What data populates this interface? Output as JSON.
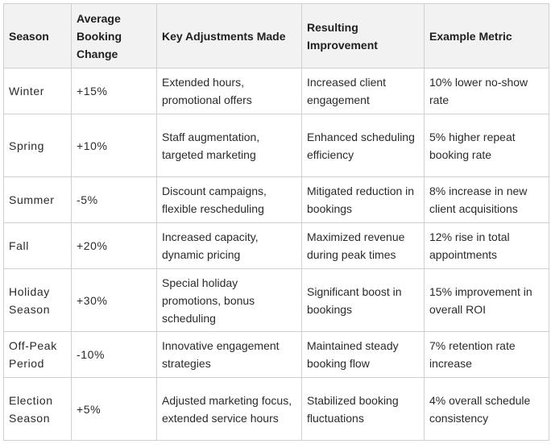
{
  "table": {
    "headers": [
      "Season",
      "Average Booking Change",
      "Key Adjustments Made",
      "Resulting Improvement",
      "Example Metric"
    ],
    "rows": [
      [
        "Winter",
        "+15%",
        "Extended hours, promotional offers",
        "Increased client engagement",
        "10% lower no-show rate"
      ],
      [
        "Spring",
        "+10%",
        "Staff augmentation, targeted marketing",
        "Enhanced scheduling efficiency",
        "5% higher repeat booking rate"
      ],
      [
        "Summer",
        "-5%",
        "Discount campaigns, flexible rescheduling",
        "Mitigated reduction in bookings",
        "8% increase in new client acquisitions"
      ],
      [
        "Fall",
        "+20%",
        "Increased capacity, dynamic pricing",
        "Maximized revenue during peak times",
        "12% rise in total appointments"
      ],
      [
        "Holiday Season",
        "+30%",
        "Special holiday promotions, bonus scheduling",
        "Significant boost in bookings",
        "15% improvement in overall ROI"
      ],
      [
        "Off-Peak Period",
        "-10%",
        "Innovative engagement strategies",
        "Maintained steady booking flow",
        "7% retention rate increase"
      ],
      [
        "Election Season",
        "+5%",
        "Adjusted marketing focus, extended service hours",
        "Stabilized booking fluctuations",
        "4% overall schedule consistency"
      ]
    ]
  }
}
